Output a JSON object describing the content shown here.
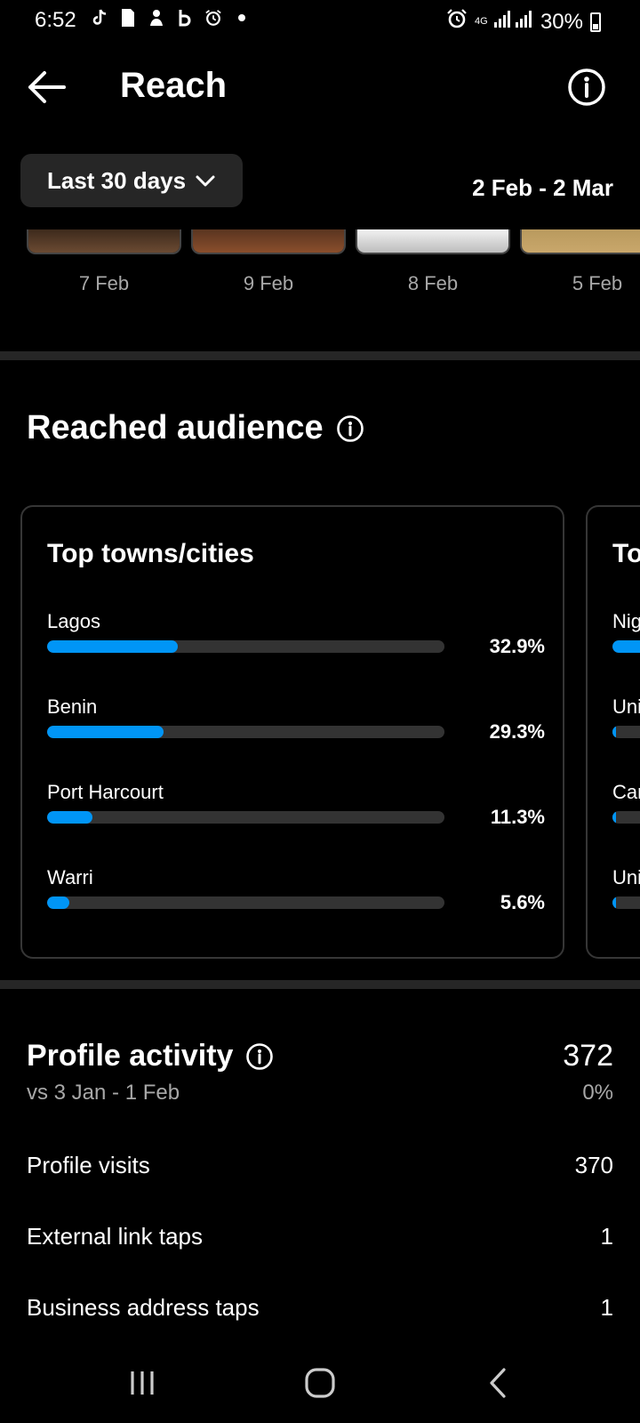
{
  "status": {
    "time": "6:52",
    "battery": "30%",
    "network": "4G"
  },
  "header": {
    "title": "Reach"
  },
  "range": {
    "button_label": "Last 30 days",
    "dates": "2 Feb - 2 Mar"
  },
  "thumbnails": [
    {
      "date": "7 Feb",
      "color": "#6b4a32"
    },
    {
      "date": "9 Feb",
      "color": "#8a4e2c"
    },
    {
      "date": "8 Feb",
      "color": "#d9d9d9"
    },
    {
      "date": "5 Feb",
      "color": "#c9a76b"
    }
  ],
  "audience": {
    "title": "Reached audience",
    "cities_card": {
      "title": "Top towns/cities",
      "items": [
        {
          "name": "Lagos",
          "value": "32.9%",
          "fraction": 0.329
        },
        {
          "name": "Benin",
          "value": "29.3%",
          "fraction": 0.293
        },
        {
          "name": "Port Harcourt",
          "value": "11.3%",
          "fraction": 0.113
        },
        {
          "name": "Warri",
          "value": "5.6%",
          "fraction": 0.056
        }
      ]
    },
    "countries_card": {
      "title": "To",
      "items": [
        {
          "name": "Nig",
          "fraction": 0.9
        },
        {
          "name": "Uni",
          "fraction": 0.02
        },
        {
          "name": "Car",
          "fraction": 0.02
        },
        {
          "name": "Uni",
          "fraction": 0.02
        }
      ]
    }
  },
  "profile_activity": {
    "title": "Profile activity",
    "total": "372",
    "comparison": "vs 3 Jan - 1 Feb",
    "change": "0%",
    "rows": [
      {
        "label": "Profile visits",
        "value": "370"
      },
      {
        "label": "External link taps",
        "value": "1"
      },
      {
        "label": "Business address taps",
        "value": "1"
      }
    ]
  },
  "colors": {
    "accent": "#0095f6",
    "track": "#333333",
    "card_border": "#363636",
    "divider": "#262626"
  }
}
